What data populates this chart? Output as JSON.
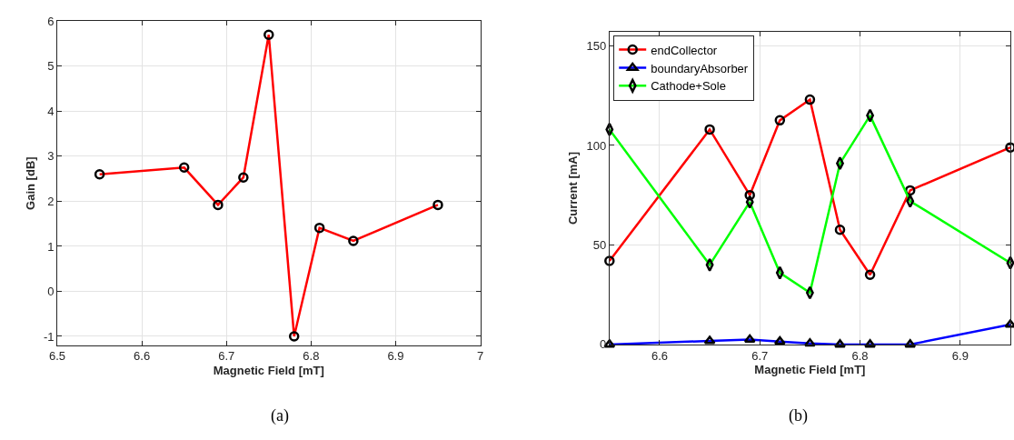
{
  "chart_data": [
    {
      "type": "line",
      "xlabel": "Magnetic Field [mT]",
      "ylabel": "Gain [dB]",
      "x": [
        6.55,
        6.65,
        6.69,
        6.72,
        6.75,
        6.78,
        6.81,
        6.85,
        6.95
      ],
      "series": [
        {
          "color": "#ff0000",
          "values": [
            2.6,
            2.75,
            1.92,
            2.53,
            5.7,
            -1.0,
            1.41,
            1.12,
            1.92
          ]
        }
      ],
      "xlim": [
        6.5,
        7
      ],
      "xticks": [
        6.5,
        6.6,
        6.7,
        6.8,
        6.9,
        7
      ],
      "ylim": [
        -1.2,
        6
      ],
      "yticks": [
        -1,
        0,
        1,
        2,
        3,
        4,
        5,
        6
      ],
      "grid": true,
      "legend": false,
      "marker": "circle",
      "line_style": "solid",
      "annotations": [
        "(a)"
      ]
    },
    {
      "type": "line",
      "xlabel": "Magnetic Field [mT]",
      "ylabel": "Current [mA]",
      "x": [
        6.55,
        6.65,
        6.69,
        6.72,
        6.75,
        6.78,
        6.81,
        6.85,
        6.95
      ],
      "series": [
        {
          "name": "endCollector",
          "color": "#ff0000",
          "marker": "circle",
          "values": [
            42,
            108,
            75,
            112.6,
            123,
            57.6,
            35,
            77.4,
            99
          ]
        },
        {
          "name": "boundaryAbsorber",
          "color": "#0000ff",
          "marker": "triangle",
          "values": [
            0,
            1.8,
            2.5,
            1.5,
            0.5,
            0,
            0,
            0,
            10
          ]
        },
        {
          "name": "Cathode+Sole",
          "color": "#00ff00",
          "marker": "diamond",
          "values": [
            108,
            40,
            71.6,
            36,
            26,
            91,
            115,
            72,
            41
          ]
        }
      ],
      "xlim": [
        6.55,
        6.95
      ],
      "xticks": [
        6.6,
        6.7,
        6.8,
        6.9
      ],
      "ylim": [
        0,
        157
      ],
      "yticks": [
        0,
        50,
        100,
        150
      ],
      "grid": true,
      "legend": "top left",
      "line_style": "solid",
      "annotations": [
        "(b)"
      ]
    }
  ]
}
